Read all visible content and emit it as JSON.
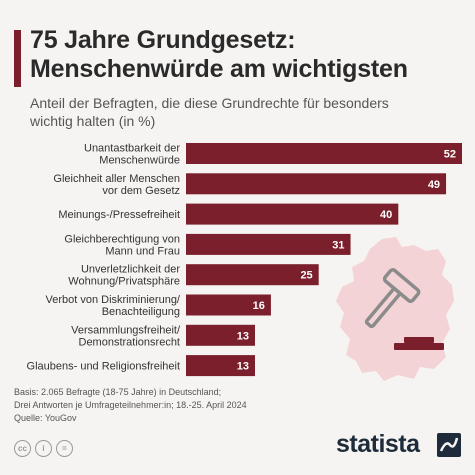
{
  "header": {
    "title_line1": "75 Jahre Grundgesetz:",
    "title_line2": "Menschenwürde am wichtigsten",
    "subtitle_line1": "Anteil der Befragten, die diese Grundrechte für besonders",
    "subtitle_line2": "wichtig halten (in %)"
  },
  "colors": {
    "bar": "#7a1f2b",
    "accent": "#7a1f2b",
    "map_fill": "#f3d3d6",
    "gavel": "#8b8b8b",
    "brand_text": "#1d2b3a"
  },
  "chart_data": {
    "type": "bar",
    "orientation": "horizontal",
    "categories": [
      [
        "Unantastbarkeit der",
        "Menschenwürde"
      ],
      [
        "Gleichheit aller Menschen",
        "vor dem Gesetz"
      ],
      [
        "Meinungs-/Pressefreiheit"
      ],
      [
        "Gleichberechtigung von",
        "Mann und Frau"
      ],
      [
        "Unverletzlichkeit der",
        "Wohnung/Privatsphäre"
      ],
      [
        "Verbot von Diskriminierung/",
        "Benachteiligung"
      ],
      [
        "Versammlungsfreiheit/",
        "Demonstrationsrecht"
      ],
      [
        "Glaubens- und Religionsfreiheit"
      ]
    ],
    "values": [
      52,
      49,
      40,
      31,
      25,
      16,
      13,
      13
    ],
    "xlim": [
      0,
      55
    ],
    "data_labels": true,
    "grid": false,
    "legend": "none"
  },
  "footer": {
    "basis_line1": "Basis: 2.065 Befragte (18-75 Jahre) in Deutschland;",
    "basis_line2": "Drei Antworten je Umfrageteilnehmer:in; 18.-25. April 2024",
    "source": "Quelle: YouGov",
    "cc_icons": [
      "cc-icon",
      "by-icon",
      "equals-icon"
    ],
    "cc_glyphs": [
      "cc",
      "i",
      "="
    ],
    "brand": "statista"
  }
}
